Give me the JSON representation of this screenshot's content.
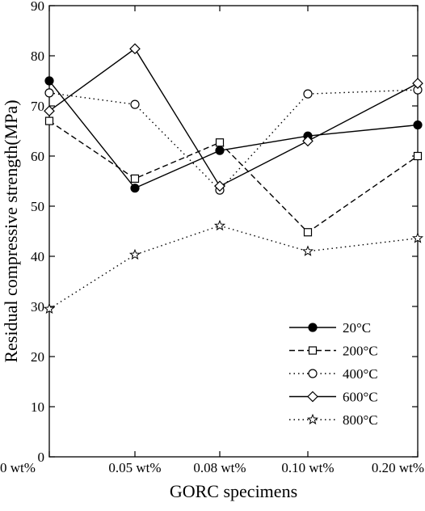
{
  "chart_data": {
    "type": "line",
    "title": "",
    "xlabel": "GORC specimens",
    "ylabel": "Residual compressive strength(MPa)",
    "categories": [
      "0 wt%",
      "0.05 wt%",
      "0.08 wt%",
      "0.10 wt%",
      "0.20 wt%"
    ],
    "ylim": [
      0,
      90
    ],
    "yticks": [
      0,
      10,
      20,
      30,
      40,
      50,
      60,
      70,
      80,
      90
    ],
    "grid": false,
    "legend_position": "bottom-right",
    "series": [
      {
        "name": "20°C",
        "values": [
          75.0,
          53.6,
          61.1,
          64.0,
          66.2
        ],
        "line": "solid",
        "marker": "filled-circle"
      },
      {
        "name": "200°C",
        "values": [
          67.0,
          55.5,
          62.7,
          44.8,
          60.0
        ],
        "line": "dashed",
        "marker": "open-square"
      },
      {
        "name": "400°C",
        "values": [
          72.6,
          70.3,
          53.2,
          72.4,
          73.2
        ],
        "line": "dotted",
        "marker": "open-circle"
      },
      {
        "name": "600°C",
        "values": [
          69.0,
          81.4,
          54.0,
          63.0,
          74.5
        ],
        "line": "solid",
        "marker": "open-diamond"
      },
      {
        "name": "800°C",
        "values": [
          29.5,
          40.3,
          46.1,
          41.0,
          43.6
        ],
        "line": "dotted",
        "marker": "open-star"
      }
    ]
  }
}
